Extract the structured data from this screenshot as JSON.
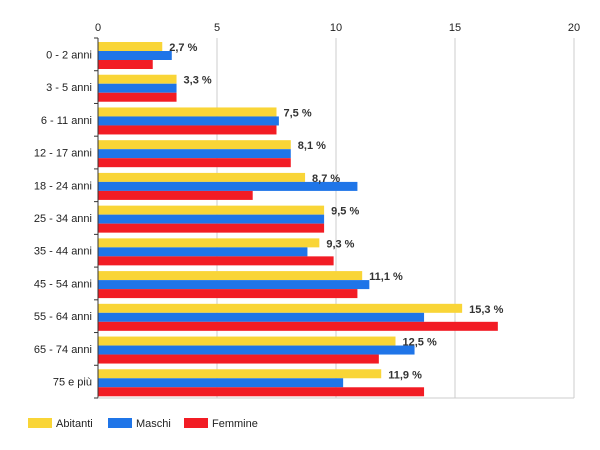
{
  "chart_data": {
    "type": "bar",
    "orientation": "horizontal",
    "categories": [
      "0 - 2 anni",
      "3 - 5 anni",
      "6 - 11 anni",
      "12 - 17 anni",
      "18 - 24 anni",
      "25 - 34 anni",
      "35 - 44 anni",
      "45 - 54 anni",
      "55 - 64 anni",
      "65 - 74 anni",
      "75 e più"
    ],
    "series": [
      {
        "name": "Abitanti",
        "color": "#f9d537",
        "values": [
          2.7,
          3.3,
          7.5,
          8.1,
          8.7,
          9.5,
          9.3,
          11.1,
          15.3,
          12.5,
          11.9
        ]
      },
      {
        "name": "Maschi",
        "color": "#1f75e8",
        "values": [
          3.1,
          3.3,
          7.6,
          8.1,
          10.9,
          9.5,
          8.8,
          11.4,
          13.7,
          13.3,
          10.3
        ]
      },
      {
        "name": "Femmine",
        "color": "#f21c24",
        "values": [
          2.3,
          3.3,
          7.5,
          8.1,
          6.5,
          9.5,
          9.9,
          10.9,
          16.8,
          11.8,
          13.7
        ]
      }
    ],
    "data_labels": [
      "2,7 %",
      "3,3 %",
      "7,5 %",
      "8,1 %",
      "8,7 %",
      "9,5 %",
      "9,3 %",
      "11,1 %",
      "15,3 %",
      "12,5 %",
      "11,9 %"
    ],
    "x_ticks": [
      "0",
      "5",
      "10",
      "15",
      "20"
    ],
    "xlim": [
      0,
      20
    ],
    "grid": true,
    "legend_position": "bottom-left",
    "grid_color": "#cccccc",
    "axis_color": "#333333"
  }
}
